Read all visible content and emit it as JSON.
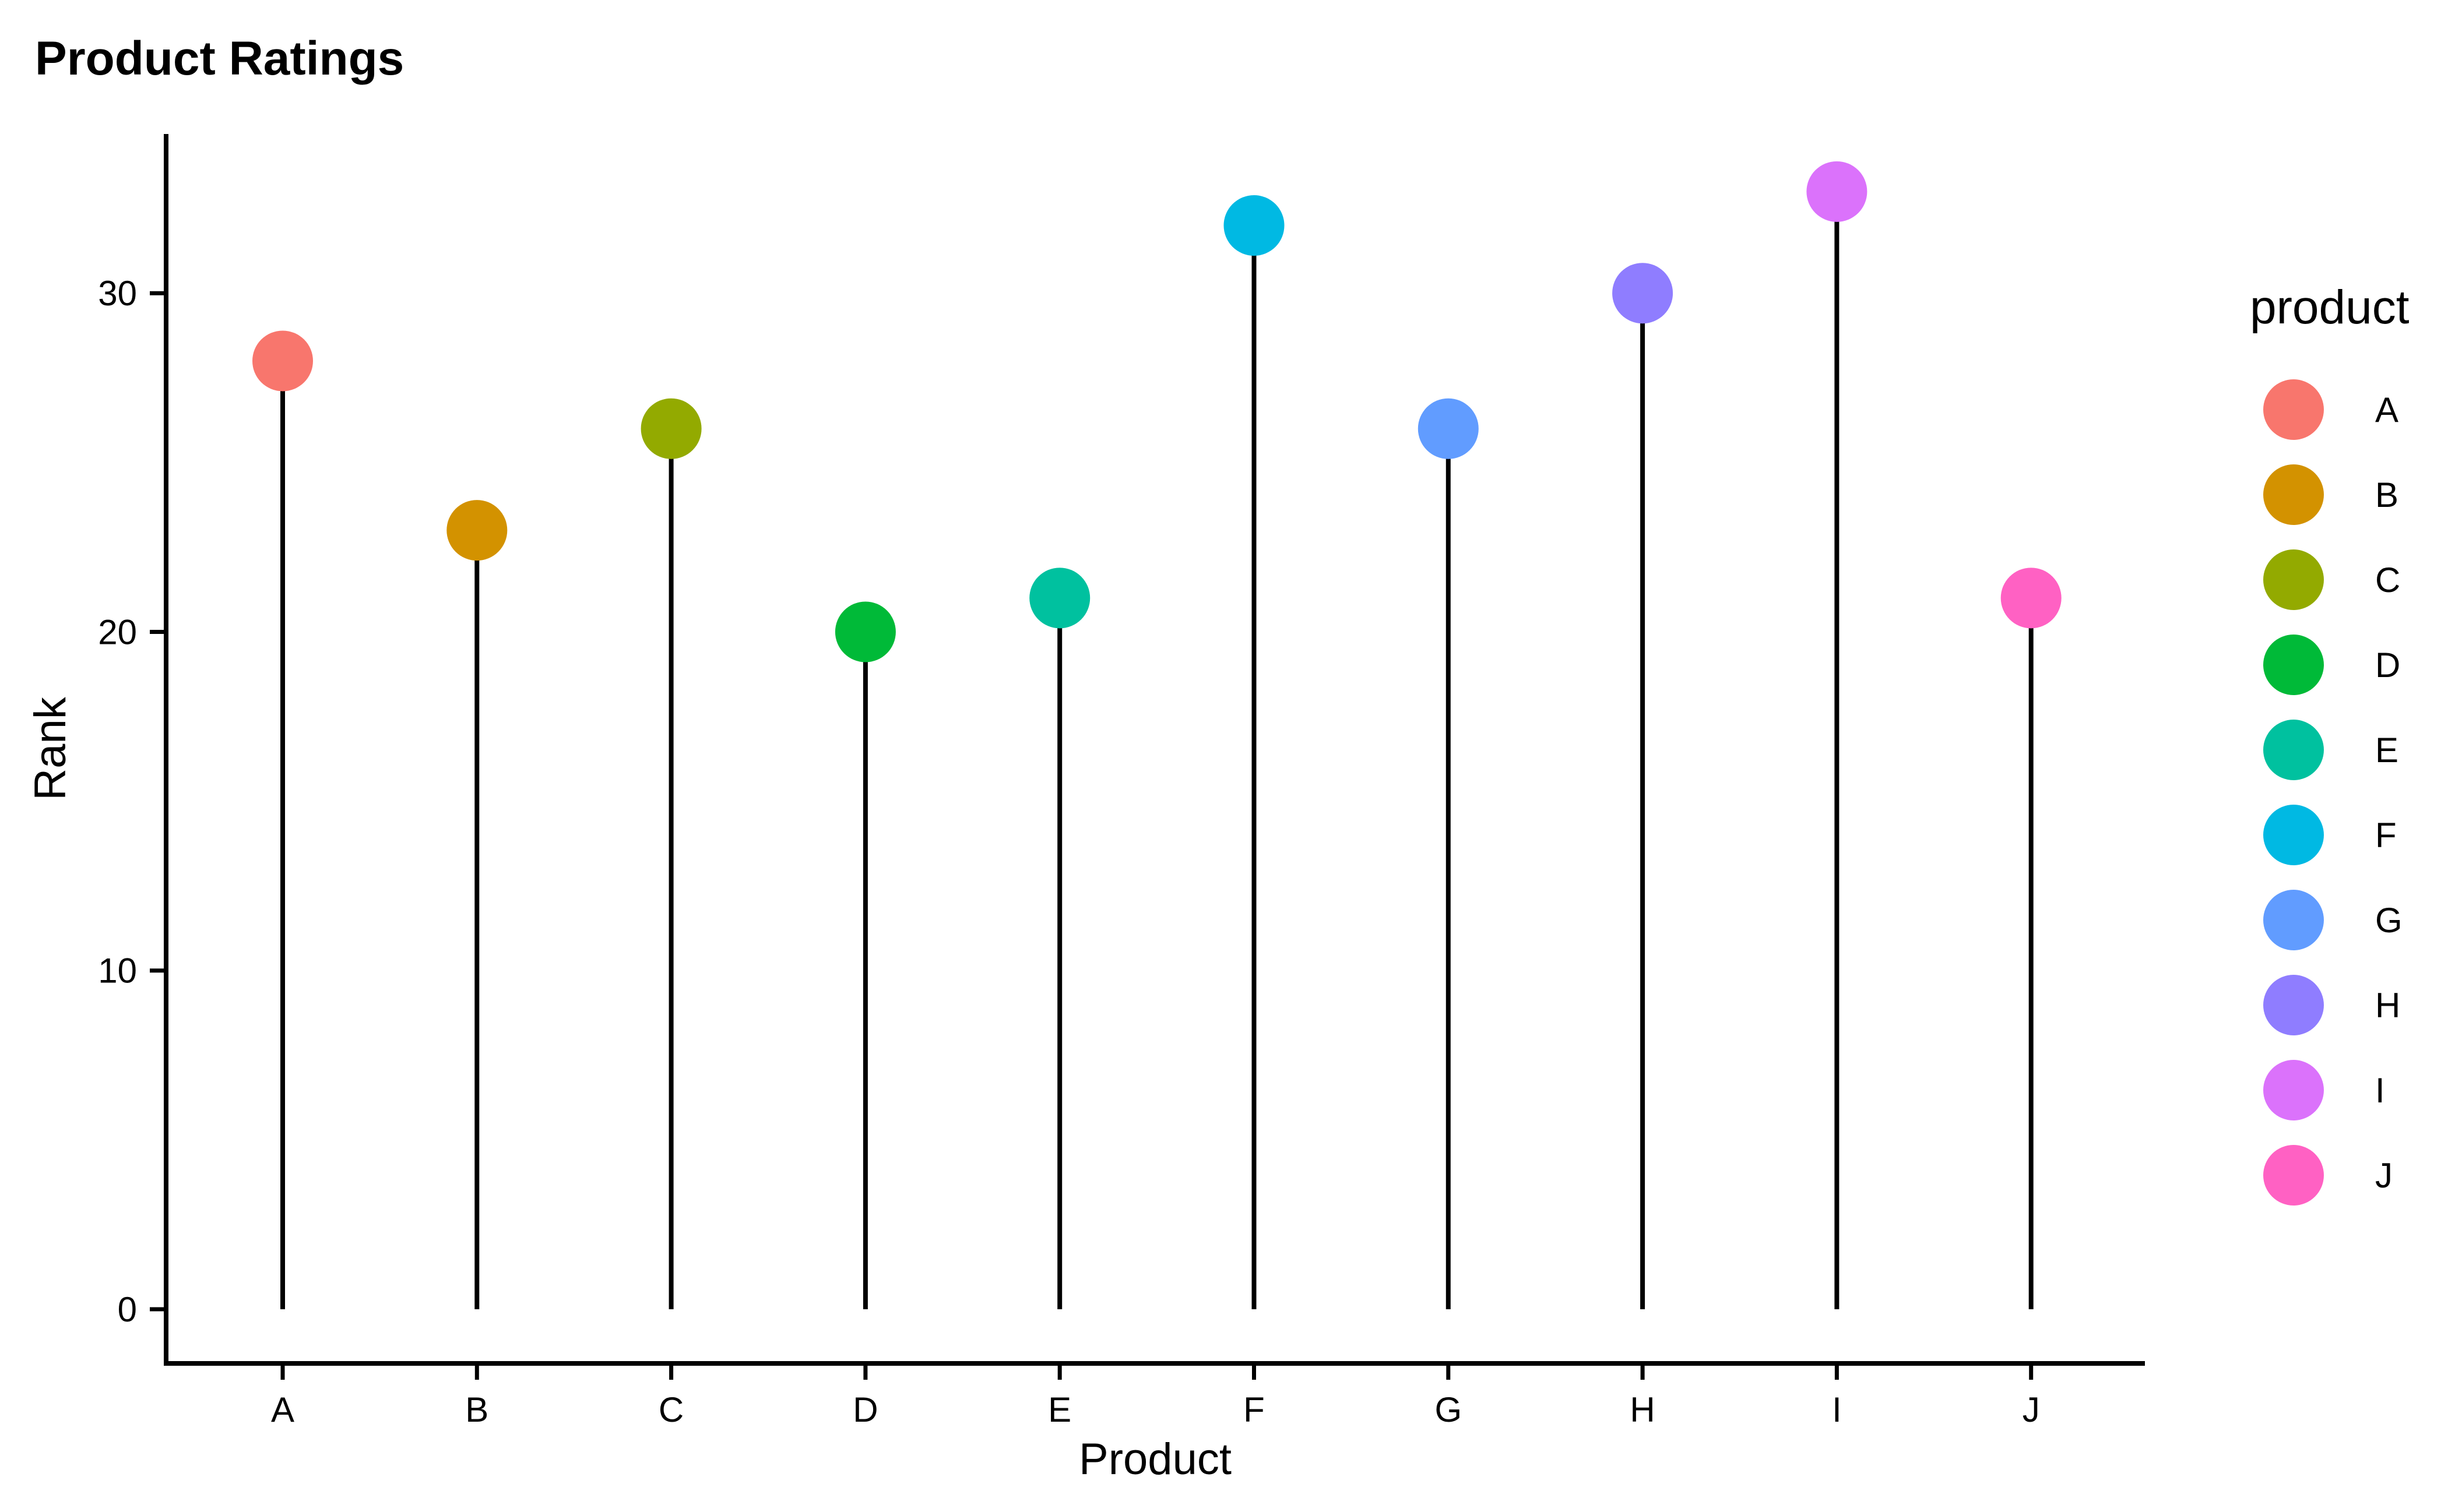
{
  "chart_data": {
    "type": "lollipop",
    "title": "Product Ratings",
    "xlabel": "Product",
    "ylabel": "Rank",
    "categories": [
      "A",
      "B",
      "C",
      "D",
      "E",
      "F",
      "G",
      "H",
      "I",
      "J"
    ],
    "values": [
      28,
      23,
      26,
      20,
      21,
      32,
      26,
      30,
      33,
      21
    ],
    "colors": [
      "#F8766D",
      "#D39200",
      "#93AA00",
      "#00BA38",
      "#00C19F",
      "#00B9E3",
      "#619CFF",
      "#8F7DFF",
      "#DB72FB",
      "#FF61C3"
    ],
    "yticks": [
      0,
      10,
      20,
      30
    ],
    "ylim": [
      -1.6,
      34.7
    ],
    "grid": false,
    "legend": {
      "title": "product",
      "position": "right",
      "items": [
        "A",
        "B",
        "C",
        "D",
        "E",
        "F",
        "G",
        "H",
        "I",
        "J"
      ]
    }
  }
}
